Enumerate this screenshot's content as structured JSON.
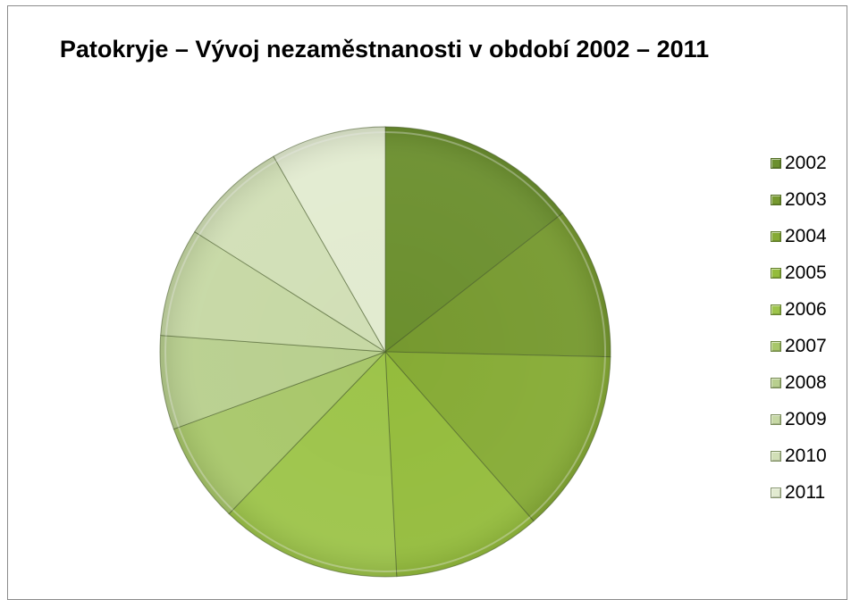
{
  "chart_data": {
    "type": "pie",
    "title": "Patokryje – Vývoj nezaměstnanosti v období 2002 – 2011",
    "categories": [
      "2002",
      "2003",
      "2004",
      "2005",
      "2006",
      "2007",
      "2008",
      "2009",
      "2010",
      "2011"
    ],
    "values": [
      15.2,
      11.5,
      13.9,
      11.2,
      13.7,
      7.6,
      7.1,
      8.2,
      8.2,
      8.7
    ],
    "colors": [
      "#6b8f2e",
      "#76992f",
      "#86ab35",
      "#94bc3c",
      "#9dc44a",
      "#a8c76a",
      "#b8cf8e",
      "#c6d8a4",
      "#d1dfb6",
      "#e2ebd0"
    ],
    "legend_position": "right",
    "start_angle_deg": 0,
    "direction": "clockwise"
  }
}
